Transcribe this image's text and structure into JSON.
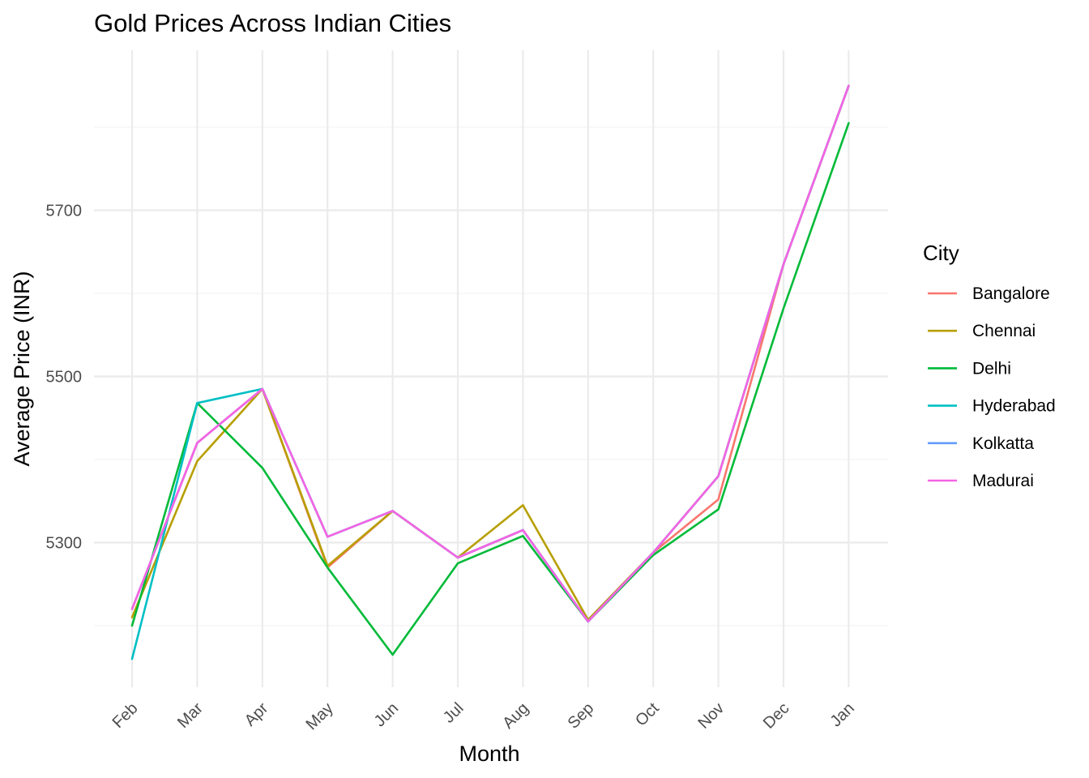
{
  "chart_data": {
    "type": "line",
    "title": "Gold Prices Across Indian Cities",
    "xlabel": "Month",
    "ylabel": "Average Price (INR)",
    "categories": [
      "Feb",
      "Mar",
      "Apr",
      "May",
      "Jun",
      "Jul",
      "Aug",
      "Sep",
      "Oct",
      "Nov",
      "Dec",
      "Jan"
    ],
    "y_ticks": [
      5300,
      5500,
      5700
    ],
    "ylim": [
      5130,
      5900
    ],
    "grid": true,
    "legend": {
      "title": "City",
      "position": "right"
    },
    "series": [
      {
        "name": "Bangalore",
        "color": "#F8766D",
        "values": [
          5220,
          5420,
          5485,
          5270,
          5338,
          5282,
          5315,
          5205,
          5288,
          5352,
          5635,
          5850
        ]
      },
      {
        "name": "Chennai",
        "color": "#B79F00",
        "values": [
          5210,
          5398,
          5485,
          5272,
          5338,
          5282,
          5345,
          5207,
          5288,
          5380,
          5635,
          5850
        ]
      },
      {
        "name": "Delhi",
        "color": "#00BA38",
        "values": [
          5200,
          5468,
          5390,
          5270,
          5165,
          5275,
          5308,
          5205,
          5285,
          5340,
          5582,
          5805
        ]
      },
      {
        "name": "Hyderabad",
        "color": "#00BFC4",
        "values": [
          5160,
          5468,
          5485,
          5307,
          5338,
          5282,
          5315,
          5205,
          5288,
          5380,
          5635,
          5850
        ]
      },
      {
        "name": "Kolkatta",
        "color": "#619CFF",
        "values": [
          5220,
          5420,
          5485,
          5307,
          5338,
          5282,
          5315,
          5205,
          5288,
          5380,
          5635,
          5850
        ]
      },
      {
        "name": "Madurai",
        "color": "#F564E3",
        "values": [
          5220,
          5420,
          5485,
          5307,
          5338,
          5282,
          5315,
          5205,
          5288,
          5380,
          5635,
          5850
        ]
      }
    ]
  }
}
